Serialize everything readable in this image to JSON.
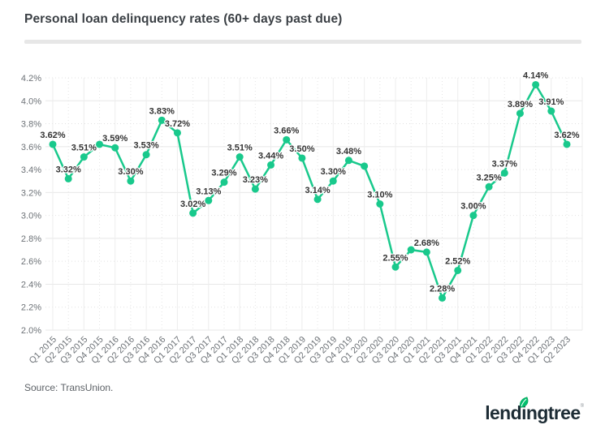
{
  "page": {
    "background": "#ffffff"
  },
  "header": {
    "title": "Personal loan delinquency rates (60+ days past due)"
  },
  "chart_data": {
    "type": "line",
    "title": "Personal loan delinquency rates (60+ days past due)",
    "series_color": "#19c98c",
    "marker_shape": "circle",
    "legend": "none",
    "grid": true,
    "ylim": [
      2.0,
      4.2
    ],
    "y_tick_values": [
      4.2,
      4.0,
      3.8,
      3.6,
      3.4,
      3.2,
      3.0,
      2.8,
      2.6,
      2.4,
      2.2,
      2.0
    ],
    "y_tick_labels": [
      "4.2%",
      "4.0%",
      "3.8%",
      "3.6%",
      "3.4%",
      "3.2%",
      "3.0%",
      "2.8%",
      "2.6%",
      "2.4%",
      "2.2%",
      "2.0%"
    ],
    "categories": [
      "Q1 2015",
      "Q2 2015",
      "Q3 2015",
      "Q4 2015",
      "Q1 2016",
      "Q2 2016",
      "Q3 2016",
      "Q4 2016",
      "Q1 2017",
      "Q2 2017",
      "Q3 2017",
      "Q4 2017",
      "Q1 2018",
      "Q2 2018",
      "Q3 2018",
      "Q4 2018",
      "Q1 2019",
      "Q2 2019",
      "Q3 2019",
      "Q4 2019",
      "Q1 2020",
      "Q2 2020",
      "Q3 2020",
      "Q4 2020",
      "Q1 2021",
      "Q2 2021",
      "Q3 2021",
      "Q4 2021",
      "Q1 2022",
      "Q2 2022",
      "Q3 2022",
      "Q4 2022",
      "Q1 2023",
      "Q2 2023"
    ],
    "values": [
      3.62,
      3.32,
      3.51,
      3.62,
      3.59,
      3.3,
      3.53,
      3.83,
      3.72,
      3.02,
      3.13,
      3.29,
      3.51,
      3.23,
      3.44,
      3.66,
      3.5,
      3.14,
      3.3,
      3.48,
      3.43,
      3.1,
      2.55,
      2.7,
      2.68,
      2.28,
      2.52,
      3.0,
      3.25,
      3.37,
      3.89,
      4.14,
      3.91,
      3.62
    ],
    "point_labels": [
      "3.62%",
      "3.32%",
      "3.51%",
      "",
      "3.59%",
      "3.30%",
      "3.53%",
      "3.83%",
      "3.72%",
      "3.02%",
      "3.13%",
      "3.29%",
      "3.51%",
      "3.23%",
      "3.44%",
      "3.66%",
      "3.50%",
      "3.14%",
      "3.30%",
      "3.48%",
      "",
      "3.10%",
      "2.55%",
      "",
      "2.68%",
      "2.28%",
      "2.52%",
      "3.00%",
      "3.25%",
      "3.37%",
      "3.89%",
      "4.14%",
      "3.91%",
      "3.62%"
    ]
  },
  "footer": {
    "source": "Source: TransUnion.",
    "logo_text": "lendingtree",
    "logo_mark": "®",
    "logo_text_color": "#1d2c35",
    "logo_leaf_color": "#00c06d"
  }
}
